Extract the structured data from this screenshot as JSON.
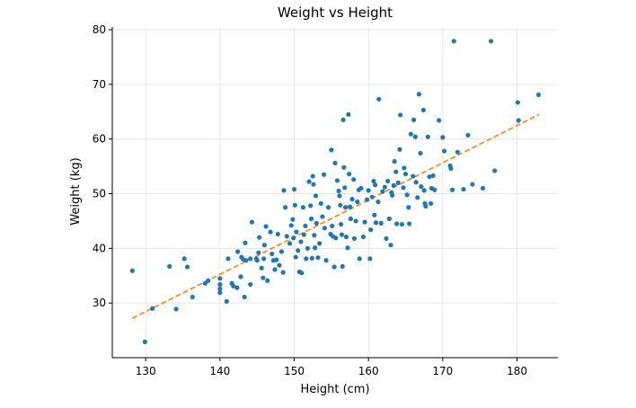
{
  "chart_data": {
    "type": "scatter",
    "title": "Weight vs Height",
    "xlabel": "Height (cm)",
    "ylabel": "Weight (kg)",
    "xlim": [
      125.5,
      185.5
    ],
    "ylim": [
      20,
      80.5
    ],
    "xticks": [
      130,
      140,
      150,
      160,
      170,
      180
    ],
    "yticks": [
      30,
      40,
      50,
      60,
      70,
      80
    ],
    "grid": true,
    "legend": "none",
    "colors": {
      "points": "#1f77b4",
      "trend": "#ff7f0e"
    },
    "trendline": {
      "x": [
        128.2,
        183.0
      ],
      "y": [
        27.2,
        64.5
      ]
    },
    "points": [
      [
        128.2,
        35.9
      ],
      [
        129.9,
        22.9
      ],
      [
        130.9,
        29.0
      ],
      [
        133.2,
        36.7
      ],
      [
        134.1,
        28.9
      ],
      [
        135.2,
        38.1
      ],
      [
        135.6,
        36.6
      ],
      [
        136.3,
        31.1
      ],
      [
        138.0,
        33.6
      ],
      [
        138.4,
        34.1
      ],
      [
        140.0,
        34.5
      ],
      [
        140.0,
        33.4
      ],
      [
        140.0,
        32.6
      ],
      [
        140.0,
        31.9
      ],
      [
        140.9,
        30.3
      ],
      [
        141.1,
        38.1
      ],
      [
        141.6,
        33.6
      ],
      [
        141.8,
        33.1
      ],
      [
        142.3,
        32.8
      ],
      [
        142.4,
        39.4
      ],
      [
        142.8,
        34.8
      ],
      [
        142.9,
        38.4
      ],
      [
        143.1,
        38.0
      ],
      [
        143.3,
        31.1
      ],
      [
        143.4,
        41.0
      ],
      [
        143.5,
        37.8
      ],
      [
        144.1,
        33.4
      ],
      [
        144.1,
        38.1
      ],
      [
        144.3,
        44.8
      ],
      [
        144.9,
        38.1
      ],
      [
        145.0,
        37.8
      ],
      [
        145.2,
        39.2
      ],
      [
        145.3,
        42.0
      ],
      [
        145.6,
        36.4
      ],
      [
        145.8,
        34.6
      ],
      [
        145.9,
        38.1
      ],
      [
        146.0,
        40.6
      ],
      [
        146.2,
        44.0
      ],
      [
        146.4,
        34.1
      ],
      [
        146.8,
        43.0
      ],
      [
        147.0,
        39.0
      ],
      [
        147.2,
        37.8
      ],
      [
        147.4,
        36.1
      ],
      [
        147.6,
        37.9
      ],
      [
        147.8,
        42.6
      ],
      [
        148.0,
        36.9
      ],
      [
        148.3,
        39.4
      ],
      [
        148.5,
        35.6
      ],
      [
        148.6,
        50.6
      ],
      [
        148.8,
        47.5
      ],
      [
        149.0,
        42.2
      ],
      [
        149.4,
        40.9
      ],
      [
        149.6,
        44.2
      ],
      [
        149.8,
        45.3
      ],
      [
        149.9,
        41.9
      ],
      [
        150.0,
        50.8
      ],
      [
        150.1,
        47.9
      ],
      [
        150.2,
        38.4
      ],
      [
        150.3,
        43.0
      ],
      [
        150.5,
        39.6
      ],
      [
        150.7,
        35.7
      ],
      [
        150.9,
        41.2
      ],
      [
        151.0,
        35.5
      ],
      [
        151.2,
        47.5
      ],
      [
        151.3,
        42.5
      ],
      [
        151.5,
        44.1
      ],
      [
        151.6,
        38.1
      ],
      [
        151.8,
        40.0
      ],
      [
        152.0,
        52.2
      ],
      [
        152.2,
        47.8
      ],
      [
        152.3,
        45.4
      ],
      [
        152.4,
        38.2
      ],
      [
        152.5,
        53.2
      ],
      [
        152.6,
        51.7
      ],
      [
        152.7,
        42.4
      ],
      [
        152.8,
        40.1
      ],
      [
        152.9,
        49.6
      ],
      [
        153.0,
        44.6
      ],
      [
        153.2,
        38.3
      ],
      [
        153.4,
        40.9
      ],
      [
        153.6,
        48.2
      ],
      [
        153.8,
        45.8
      ],
      [
        154.0,
        53.5
      ],
      [
        154.1,
        43.7
      ],
      [
        154.3,
        37.8
      ],
      [
        154.6,
        47.5
      ],
      [
        154.9,
        42.6
      ],
      [
        155.0,
        58.0
      ],
      [
        155.1,
        44.1
      ],
      [
        155.2,
        42.2
      ],
      [
        155.4,
        36.6
      ],
      [
        155.5,
        55.6
      ],
      [
        155.6,
        41.9
      ],
      [
        155.8,
        52.4
      ],
      [
        156.0,
        50.5
      ],
      [
        156.1,
        49.6
      ],
      [
        156.2,
        47.9
      ],
      [
        156.3,
        44.4
      ],
      [
        156.4,
        42.5
      ],
      [
        156.5,
        36.7
      ],
      [
        156.6,
        63.5
      ],
      [
        156.7,
        54.8
      ],
      [
        156.8,
        51.1
      ],
      [
        156.9,
        47.5
      ],
      [
        157.0,
        42.1
      ],
      [
        157.2,
        40.1
      ],
      [
        157.3,
        64.5
      ],
      [
        157.4,
        53.6
      ],
      [
        157.5,
        47.6
      ],
      [
        157.6,
        45.4
      ],
      [
        157.8,
        49.0
      ],
      [
        158.0,
        52.6
      ],
      [
        158.1,
        41.8
      ],
      [
        158.3,
        45.0
      ],
      [
        158.5,
        48.5
      ],
      [
        158.7,
        50.7
      ],
      [
        158.8,
        38.1
      ],
      [
        159.0,
        51.0
      ],
      [
        159.3,
        42.1
      ],
      [
        159.5,
        44.8
      ],
      [
        159.8,
        48.9
      ],
      [
        160.0,
        50.6
      ],
      [
        160.2,
        38.1
      ],
      [
        160.3,
        43.4
      ],
      [
        160.5,
        49.4
      ],
      [
        160.7,
        52.3
      ],
      [
        160.8,
        46.1
      ],
      [
        160.9,
        51.6
      ],
      [
        161.0,
        44.7
      ],
      [
        161.3,
        48.5
      ],
      [
        161.4,
        67.3
      ],
      [
        161.7,
        44.6
      ],
      [
        161.9,
        50.4
      ],
      [
        162.2,
        51.2
      ],
      [
        162.4,
        41.8
      ],
      [
        162.6,
        52.3
      ],
      [
        162.8,
        45.4
      ],
      [
        163.0,
        40.6
      ],
      [
        163.1,
        50.2
      ],
      [
        163.2,
        49.7
      ],
      [
        163.4,
        51.5
      ],
      [
        163.5,
        55.9
      ],
      [
        163.7,
        54.0
      ],
      [
        163.8,
        44.5
      ],
      [
        164.0,
        52.0
      ],
      [
        164.2,
        58.1
      ],
      [
        164.3,
        64.4
      ],
      [
        164.5,
        44.4
      ],
      [
        164.7,
        51.1
      ],
      [
        164.8,
        54.7
      ],
      [
        165.0,
        53.6
      ],
      [
        165.2,
        49.8
      ],
      [
        165.4,
        47.5
      ],
      [
        165.5,
        44.5
      ],
      [
        165.7,
        60.9
      ],
      [
        166.0,
        53.2
      ],
      [
        166.1,
        63.5
      ],
      [
        166.3,
        60.4
      ],
      [
        166.4,
        52.1
      ],
      [
        166.6,
        49.3
      ],
      [
        166.8,
        68.2
      ],
      [
        167.0,
        57.4
      ],
      [
        167.1,
        51.3
      ],
      [
        167.4,
        65.3
      ],
      [
        167.5,
        50.6
      ],
      [
        167.6,
        48.2
      ],
      [
        167.7,
        47.7
      ],
      [
        168.0,
        60.4
      ],
      [
        168.2,
        53.1
      ],
      [
        168.4,
        48.2
      ],
      [
        168.5,
        51.0
      ],
      [
        168.7,
        53.3
      ],
      [
        168.9,
        50.7
      ],
      [
        169.5,
        63.4
      ],
      [
        170.0,
        60.3
      ],
      [
        170.2,
        57.8
      ],
      [
        171.0,
        55.1
      ],
      [
        171.1,
        54.6
      ],
      [
        171.3,
        50.7
      ],
      [
        171.5,
        77.9
      ],
      [
        172.0,
        57.6
      ],
      [
        172.8,
        50.8
      ],
      [
        173.4,
        60.7
      ],
      [
        174.0,
        51.7
      ],
      [
        175.4,
        51.0
      ],
      [
        176.5,
        77.9
      ],
      [
        177.0,
        54.2
      ],
      [
        180.1,
        66.7
      ],
      [
        180.2,
        63.4
      ],
      [
        182.9,
        68.1
      ]
    ]
  }
}
